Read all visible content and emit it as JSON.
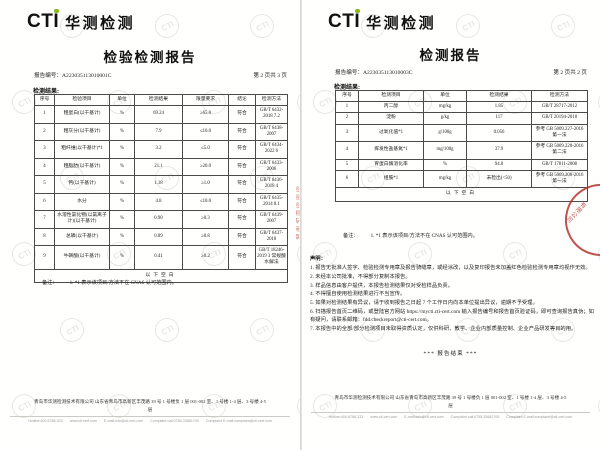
{
  "brand": {
    "cti": "CTI",
    "cn": "华测检测"
  },
  "colors": {
    "green": "#86b817",
    "seal_red": "#b5342c"
  },
  "watermark": {
    "text": "CTI"
  },
  "left_page": {
    "title": "检验检测报告",
    "report_no_label": "报告编号：",
    "report_no": "A223035113010001C",
    "page_info": "第 2 页共 3 页",
    "results_label": "检测结果:",
    "table": {
      "headers": [
        "序号",
        "检验项目",
        "单位",
        "检测结果",
        "限量要求",
        "结论",
        "检测方法"
      ],
      "rows": [
        [
          "1",
          "粗蛋白(以干基计)",
          "%",
          "69.24",
          "≥65.0",
          "符合",
          "GB/T 6432-2018 7.2"
        ],
        [
          "2",
          "粗灰分(以干基计)",
          "%",
          "7.9",
          "≤10.0",
          "符合",
          "GB/T 6438-2007"
        ],
        [
          "3",
          "粗纤维(以干基计)*1",
          "%",
          "3.2",
          "≤5.0",
          "符合",
          "GB/T 6434-2022 6"
        ],
        [
          "4",
          "粗脂肪(以干基计)",
          "%",
          "21.1",
          "≥20.0",
          "符合",
          "GB/T 6433-2006"
        ],
        [
          "5",
          "钙(以干基计)",
          "%",
          "1.18",
          "≥1.0",
          "符合",
          "GB/T 6436-2018 4"
        ],
        [
          "6",
          "水分",
          "%",
          "4.8",
          "≤10.0",
          "符合",
          "GB/T 6435-2014 8.1"
        ],
        [
          "7",
          "水溶性氯化物(以氯离子计)(以干基计)",
          "%",
          "0.90",
          "≥0.3",
          "符合",
          "GB/T 6439-2007"
        ],
        [
          "8",
          "总磷(以干基计)",
          "%",
          "0.89",
          "≥0.8",
          "符合",
          "GB/T 6437-2018"
        ],
        [
          "9",
          "牛磺酸(以干基计)",
          "%",
          "0.41",
          "≥0.2",
          "符合",
          "GB/T 18246-2019 3 常规酸水解法"
        ]
      ],
      "blank_row": "以下空白"
    },
    "remark_label": "备注：",
    "remark_text": "1. *1 表示该项目/方法不在 CNAS 认可范围内。",
    "edge_seal_text": "检验检测专用章"
  },
  "right_page": {
    "title": "检测报告",
    "report_no_label": "报告编号：",
    "report_no": "A223035113010003C",
    "page_info": "第 2 页共 2 页",
    "results_label": "检测结果:",
    "table": {
      "headers": [
        "序号",
        "检测项目",
        "单位",
        "检测结果",
        "检测方法"
      ],
      "rows": [
        [
          "1",
          "丙二醇",
          "mg/kg",
          "1.85",
          "GB/T 28717-2012"
        ],
        [
          "2",
          "淀粉",
          "g/kg",
          "117",
          "GB/T 20194-2018"
        ],
        [
          "3",
          "过氧化值*1",
          "g/100g",
          "0.056",
          "参考 GB 5009.227-2016 第一法"
        ],
        [
          "4",
          "挥发性盐基氮*1",
          "mg/100g",
          "37.9",
          "参考 GB 5009.228-2016 第二法"
        ],
        [
          "5",
          "胃蛋白酶消化率",
          "%",
          "94.0",
          "GB/T 17811-2008"
        ],
        [
          "6",
          "组胺*1",
          "mg/kg",
          "未检出(<50)",
          "参考 GB 5009.208-2016 第一法"
        ]
      ],
      "blank_row": "以下空白"
    },
    "remark_label": "备注：",
    "remark_text": "1. *1 表示该项目/方法不在 CNAS 认可范围内。",
    "statements_label": "声明：",
    "statements": [
      "1. 报告无批准人签字、检验检测专用章及报告骑缝章，或经涂改，以及复印报告未加盖红色检验检测专用章均视作无效。",
      "2. 未经本公司批准，不得部分复制本报告。",
      "3. 样品信息由客户提供，本报告检测结果仅对受检样品负责。",
      "4. 不得擅自使用检测结果进行不当宣传。",
      "5. 如果对检测结果有异议，请于收到报告之日起 7 个工作日内向本单位提出异议，逾期不予受理。",
      "6. 扫描报告首页二维码，或登陆官方网站 https://mycti.cti-cert.com 输入报告编号和报告首页验证码，即可查询报告真伪；如有疑问，请联系邮箱：fdd.checkreport@cti-cert.com。",
      "7. 本报告中的全部/部分检测项目未取得资质认定，仅供科研、教学、企业内部质量控制、企业产品研发等目的用。"
    ],
    "end_marker": "*** 报告结束 ***",
    "seal_visible_text": "有限公司"
  },
  "footer": {
    "address": "青岛市华测检测技术有限公司 山东省青岛市高新区丰茂路 39 号 1 号楼负 1 层 001-002 室、1 号楼 1-4 层、3 号楼 4-5 层",
    "contacts": [
      "Hotline:400-6788-333",
      "www.cti-cert.com",
      "E-mail:info@cti-cert.com",
      "Complaint call:0755-33681700",
      "Complaint E-mail:complaint@cti-cert.com"
    ]
  }
}
